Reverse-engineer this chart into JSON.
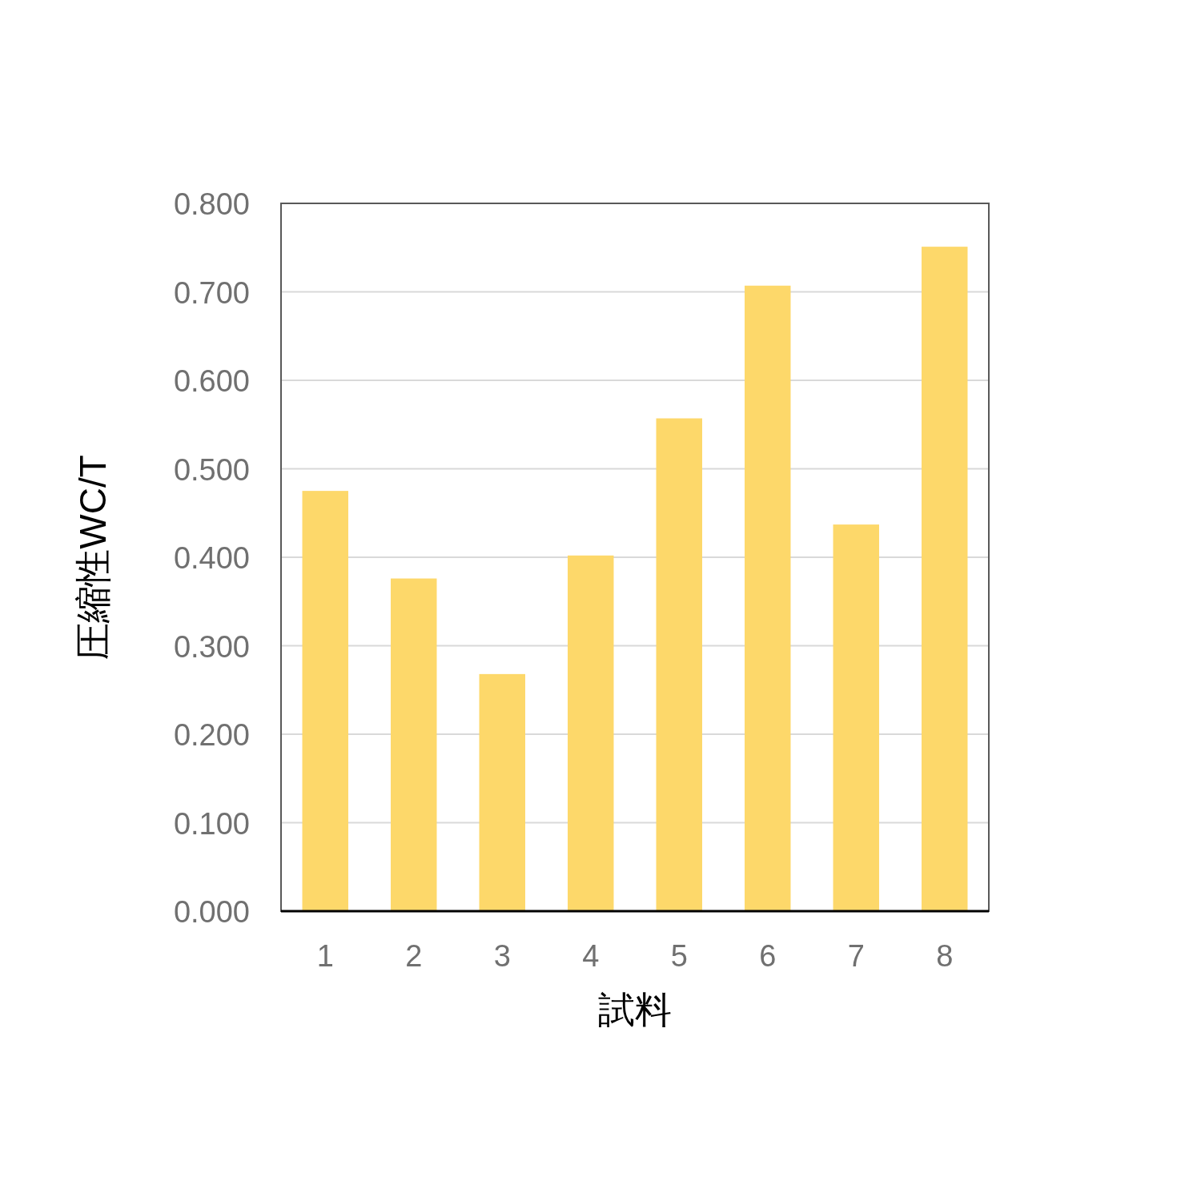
{
  "chart_data": {
    "type": "bar",
    "xlabel": "試料",
    "ylabel": "圧縮性WC/T",
    "categories": [
      "1",
      "2",
      "3",
      "4",
      "5",
      "6",
      "7",
      "8"
    ],
    "values": [
      0.475,
      0.376,
      0.268,
      0.402,
      0.557,
      0.707,
      0.437,
      0.751
    ],
    "color": "#fdd86a",
    "ylim": [
      0,
      0.8
    ],
    "yticks": [
      {
        "value": 0,
        "label": "0.000"
      },
      {
        "value": 0.1,
        "label": "0.100"
      },
      {
        "value": 0.2,
        "label": "0.200"
      },
      {
        "value": 0.3,
        "label": "0.300"
      },
      {
        "value": 0.4,
        "label": "0.400"
      },
      {
        "value": 0.5,
        "label": "0.500"
      },
      {
        "value": 0.6,
        "label": "0.600"
      },
      {
        "value": 0.7,
        "label": "0.700"
      },
      {
        "value": 0.8,
        "label": "0.800"
      }
    ],
    "grid": "y"
  }
}
